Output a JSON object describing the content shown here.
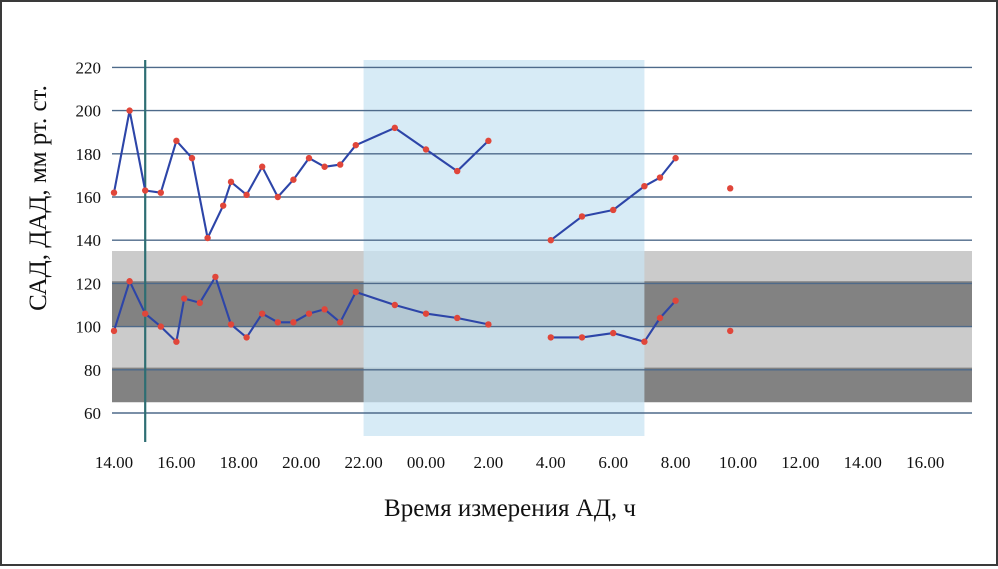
{
  "chart_data": {
    "type": "line",
    "ylabel": "САД, ДАД, мм рт. ст.",
    "xlabel": "Время измерения АД, ч",
    "ylim": [
      50,
      220
    ],
    "y_ticks": [
      "60",
      "80",
      "100",
      "120",
      "140",
      "160",
      "180",
      "200",
      "220"
    ],
    "x_ticks": [
      "14.00",
      "16.00",
      "18.00",
      "20.00",
      "22.00",
      "00.00",
      "2.00",
      "4.00",
      "6.00",
      "8.00",
      "10.00",
      "12.00",
      "14.00",
      "16.00"
    ],
    "grid": true,
    "night_period": {
      "from": "22.00",
      "to": "7.00"
    },
    "marker_line_time": "15.00",
    "series": [
      {
        "values": [
          {
            "t": "14.00",
            "v": 162
          },
          {
            "t": "14.30",
            "v": 200
          },
          {
            "t": "15.00",
            "v": 163
          },
          {
            "t": "15.30",
            "v": 162
          },
          {
            "t": "16.00",
            "v": 186
          },
          {
            "t": "16.30",
            "v": 178
          },
          {
            "t": "17.00",
            "v": 141
          },
          {
            "t": "17.30",
            "v": 156
          },
          {
            "t": "17.45",
            "v": 167
          },
          {
            "t": "18.15",
            "v": 161
          },
          {
            "t": "18.45",
            "v": 174
          },
          {
            "t": "19.15",
            "v": 160
          },
          {
            "t": "19.45",
            "v": 168
          },
          {
            "t": "20.15",
            "v": 178
          },
          {
            "t": "20.45",
            "v": 174
          },
          {
            "t": "21.15",
            "v": 175
          },
          {
            "t": "21.45",
            "v": 184
          },
          {
            "t": "23.00",
            "v": 192
          },
          {
            "t": "00.00",
            "v": 182
          },
          {
            "t": "1.00",
            "v": 172
          },
          {
            "t": "2.00",
            "v": 186
          }
        ]
      },
      {
        "values": [
          {
            "t": "4.00",
            "v": 140
          },
          {
            "t": "5.00",
            "v": 151
          },
          {
            "t": "6.00",
            "v": 154
          },
          {
            "t": "7.00",
            "v": 165
          },
          {
            "t": "7.30",
            "v": 169
          },
          {
            "t": "8.00",
            "v": 178
          }
        ]
      },
      {
        "values": [
          {
            "t": "9.45",
            "v": 164
          }
        ]
      },
      {
        "values": [
          {
            "t": "14.00",
            "v": 98
          },
          {
            "t": "14.30",
            "v": 121
          },
          {
            "t": "15.00",
            "v": 106
          },
          {
            "t": "15.30",
            "v": 100
          },
          {
            "t": "16.00",
            "v": 93
          },
          {
            "t": "16.15",
            "v": 113
          },
          {
            "t": "16.45",
            "v": 111
          },
          {
            "t": "17.15",
            "v": 123
          },
          {
            "t": "17.45",
            "v": 101
          },
          {
            "t": "18.15",
            "v": 95
          },
          {
            "t": "18.45",
            "v": 106
          },
          {
            "t": "19.15",
            "v": 102
          },
          {
            "t": "19.45",
            "v": 102
          },
          {
            "t": "20.15",
            "v": 106
          },
          {
            "t": "20.45",
            "v": 108
          },
          {
            "t": "21.15",
            "v": 102
          },
          {
            "t": "21.45",
            "v": 116
          },
          {
            "t": "23.00",
            "v": 110
          },
          {
            "t": "00.00",
            "v": 106
          },
          {
            "t": "1.00",
            "v": 104
          },
          {
            "t": "2.00",
            "v": 101
          }
        ]
      },
      {
        "values": [
          {
            "t": "4.00",
            "v": 95
          },
          {
            "t": "5.00",
            "v": 95
          },
          {
            "t": "6.00",
            "v": 97
          },
          {
            "t": "7.00",
            "v": 93
          },
          {
            "t": "7.30",
            "v": 104
          },
          {
            "t": "8.00",
            "v": 112
          }
        ]
      },
      {
        "values": [
          {
            "t": "9.45",
            "v": 98
          }
        ]
      }
    ],
    "colors": {
      "line": "#2d45a8",
      "marker": "#e0463a",
      "grid": "#4e6a8a",
      "night_band": "#c7e3f3",
      "light_band": "#c8c8c8",
      "dark_band": "#7a7a7a",
      "marker_line": "#2e6e73"
    }
  }
}
